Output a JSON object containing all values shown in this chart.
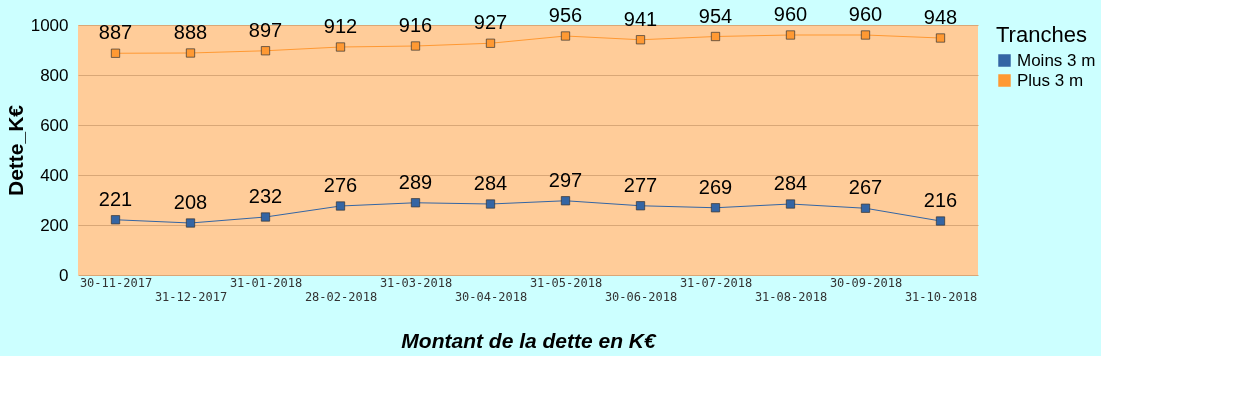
{
  "chart_data": {
    "type": "line",
    "xlabel": "Montant de la dette en K€",
    "ylabel": "Dette_K€",
    "legend_title": "Tranches",
    "categories": [
      "30-11-2017",
      "31-12-2017",
      "31-01-2018",
      "28-02-2018",
      "31-03-2018",
      "30-04-2018",
      "31-05-2018",
      "30-06-2018",
      "31-07-2018",
      "31-08-2018",
      "30-09-2018",
      "31-10-2018"
    ],
    "series": [
      {
        "name": "Moins 3 m",
        "color": "#3465a4",
        "values": [
          221,
          208,
          232,
          276,
          289,
          284,
          297,
          277,
          269,
          284,
          267,
          216
        ]
      },
      {
        "name": "Plus 3 m",
        "color": "#ff9933",
        "values": [
          887,
          888,
          897,
          912,
          916,
          927,
          956,
          941,
          954,
          960,
          960,
          948
        ]
      }
    ],
    "ylim": [
      0,
      1000
    ],
    "yticks": [
      0,
      200,
      400,
      600,
      800,
      1000
    ],
    "grid": "y",
    "legend": "right",
    "marker": "square",
    "line_style": "solid",
    "data_labels": true
  }
}
